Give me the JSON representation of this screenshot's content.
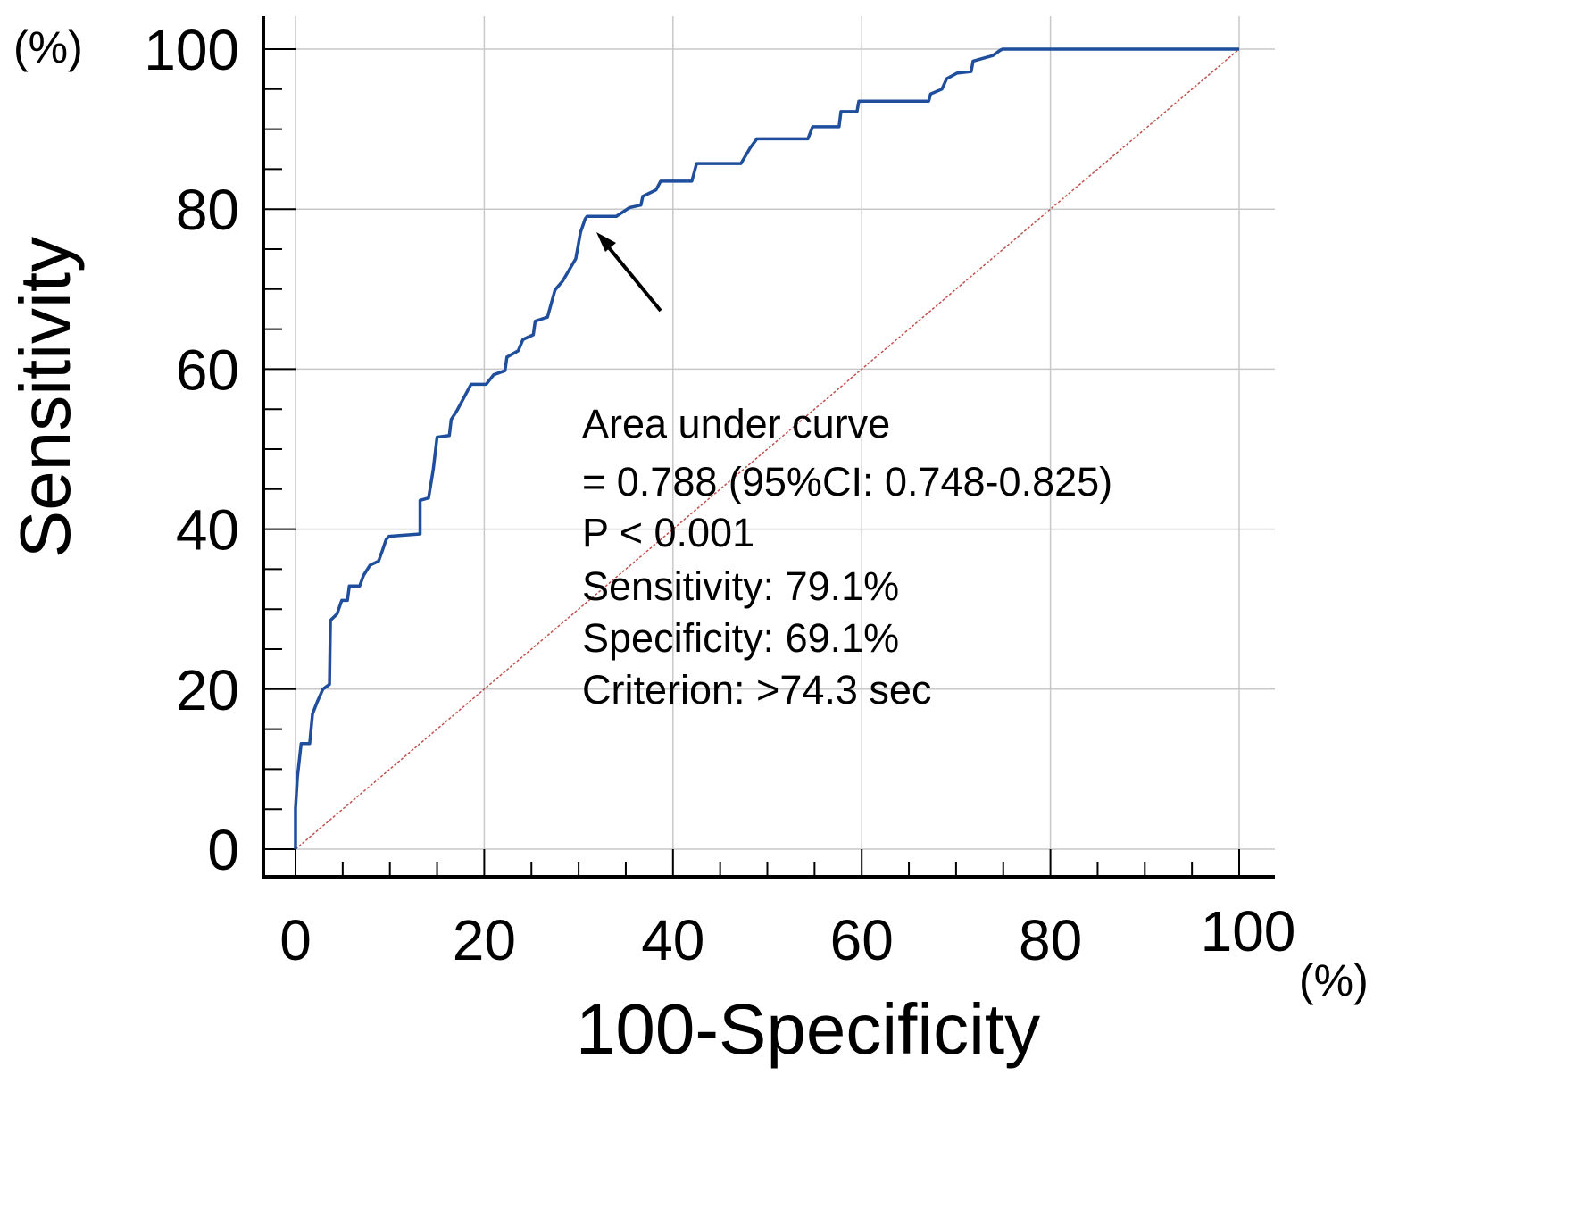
{
  "chart_data": {
    "type": "line",
    "title": "",
    "xlabel": "100-Specificity",
    "ylabel": "Sensitivity",
    "x_unit": "(%)",
    "y_unit": "(%)",
    "xlim": [
      0,
      100
    ],
    "ylim": [
      0,
      100
    ],
    "grid": true,
    "x_ticks": [
      "0",
      "20",
      "40",
      "60",
      "80",
      "100"
    ],
    "y_ticks": [
      "0",
      "20",
      "40",
      "60",
      "80",
      "100"
    ],
    "series": [
      {
        "name": "ROC curve",
        "color": "#1f4e9c",
        "x": [
          0,
          0,
          0.2,
          0.6,
          1.5,
          1.8,
          2.3,
          2.9,
          3.6,
          3.7,
          4.4,
          4.9,
          5.5,
          5.7,
          6.8,
          7.2,
          7.9,
          8.8,
          9.2,
          9.6,
          9.9,
          13.2,
          13.2,
          14.1,
          14.6,
          15.0,
          16.3,
          16.5,
          17.1,
          18.1,
          18.6,
          20.2,
          21.0,
          22.2,
          22.4,
          23.6,
          24.1,
          25.2,
          25.4,
          26.7,
          27.5,
          28.3,
          29.7,
          30.2,
          30.7,
          30.9,
          34.0,
          35.4,
          36.6,
          36.8,
          38.2,
          38.7,
          42.0,
          42.5,
          47.2,
          48.2,
          48.9,
          54.3,
          54.8,
          57.6,
          57.8,
          59.5,
          59.7,
          67.1,
          67.3,
          68.5,
          69.0,
          70.1,
          71.6,
          71.8,
          73.9,
          74.6,
          74.9,
          100
        ],
        "y": [
          0,
          5.1,
          9.0,
          13.2,
          13.2,
          16.9,
          18.4,
          20.0,
          20.6,
          28.6,
          29.4,
          31.1,
          31.1,
          32.9,
          32.9,
          34.2,
          35.5,
          36.0,
          37.3,
          38.7,
          39.1,
          39.4,
          43.6,
          43.9,
          47.5,
          51.5,
          51.7,
          53.7,
          54.8,
          57.0,
          58.1,
          58.1,
          59.3,
          59.8,
          61.5,
          62.3,
          63.7,
          64.3,
          66.0,
          66.5,
          69.9,
          71.0,
          73.8,
          77.1,
          78.8,
          79.1,
          79.1,
          80.2,
          80.5,
          81.6,
          82.4,
          83.5,
          83.5,
          85.7,
          85.7,
          87.7,
          88.8,
          88.8,
          90.3,
          90.3,
          92.2,
          92.2,
          93.5,
          93.5,
          94.4,
          95.0,
          96.3,
          97.0,
          97.2,
          98.5,
          99.2,
          99.8,
          100,
          100
        ]
      },
      {
        "name": "Reference line",
        "color": "#c0504d",
        "x": [
          0,
          100
        ],
        "y": [
          0,
          100
        ]
      }
    ],
    "optimal_point": {
      "x": 30.9,
      "y": 79.1
    },
    "annotations": [
      "Area under curve",
      "= 0.788 (95%CI: 0.748-0.825)",
      "P < 0.001",
      "Sensitivity: 79.1%",
      "Specificity: 69.1%",
      "Criterion: >74.3 sec"
    ]
  }
}
